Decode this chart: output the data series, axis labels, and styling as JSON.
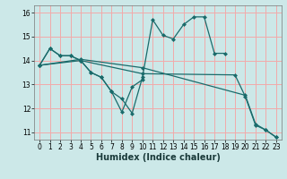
{
  "xlabel": "Humidex (Indice chaleur)",
  "xlim": [
    -0.5,
    23.5
  ],
  "ylim": [
    10.7,
    16.3
  ],
  "yticks": [
    11,
    12,
    13,
    14,
    15,
    16
  ],
  "xticks": [
    0,
    1,
    2,
    3,
    4,
    5,
    6,
    7,
    8,
    9,
    10,
    11,
    12,
    13,
    14,
    15,
    16,
    17,
    18,
    19,
    20,
    21,
    22,
    23
  ],
  "bg_color": "#cce8e8",
  "grid_color": "#f2aaaa",
  "line_color": "#1a6b6b",
  "line1_x": [
    0,
    1,
    2,
    3,
    4,
    5,
    6,
    7,
    8,
    9,
    10,
    11,
    12,
    13,
    14,
    15,
    16,
    17,
    18
  ],
  "line1_y": [
    13.8,
    14.5,
    14.2,
    14.2,
    14.0,
    13.5,
    13.3,
    12.7,
    12.4,
    11.8,
    13.3,
    15.7,
    15.05,
    14.9,
    15.5,
    15.82,
    15.82,
    14.3,
    14.3
  ],
  "line2_x": [
    0,
    1,
    2,
    3,
    4,
    5,
    6,
    7,
    8,
    9,
    10
  ],
  "line2_y": [
    13.8,
    14.5,
    14.2,
    14.2,
    14.0,
    13.5,
    13.3,
    12.7,
    11.85,
    12.9,
    13.2
  ],
  "line3_x": [
    0,
    4,
    10,
    19,
    20,
    21,
    22,
    23
  ],
  "line3_y": [
    13.8,
    14.0,
    13.45,
    13.4,
    12.5,
    11.3,
    11.1,
    10.8
  ],
  "line4_x": [
    0,
    4,
    10,
    20,
    21,
    22,
    23
  ],
  "line4_y": [
    13.8,
    14.05,
    13.7,
    12.55,
    11.35,
    11.1,
    10.8
  ]
}
